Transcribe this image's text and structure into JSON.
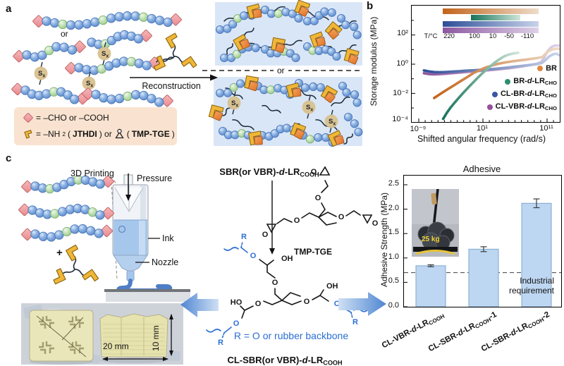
{
  "panel_labels": {
    "a": "a",
    "b": "b",
    "c": "c"
  },
  "panel_a": {
    "or_top": "or",
    "or_mid": "or",
    "reconstruction": "Reconstruction",
    "sx": {
      "s": "S",
      "x": "x"
    },
    "legend": {
      "row1": "= –CHO or –COOH",
      "nh": "= –NH",
      "nh_sub": "2",
      "o1": "(",
      "jthdi": "JTHDI",
      "o2": ") or",
      "o3": "(",
      "tmp": "TMP-TGE",
      "o4": ")"
    }
  },
  "panel_b": {
    "ylabel": "Storage modulus (MPa)",
    "xlabel": "Shifted angular frequency (rad/s)",
    "temp_label": "T/°C",
    "temp_ticks": [
      "220",
      "100",
      "10",
      "-50",
      "-110"
    ],
    "yticks": [
      "10²",
      "10⁰",
      "10⁻²",
      "10⁻⁴"
    ],
    "xticks": [
      "10⁻⁹",
      "10¹",
      "10¹¹"
    ],
    "legend": [
      {
        "pre": "BR",
        "d": "",
        "mid": "",
        "sub": "",
        "dot_color": "#e0873f"
      },
      {
        "pre": "BR-",
        "d": "d",
        "mid": "-LR",
        "sub": "CHO",
        "dot_color": "#2e8f6d"
      },
      {
        "pre": "CL-BR-",
        "d": "d",
        "mid": "-LR",
        "sub": "CHO",
        "dot_color": "#3a57a5"
      },
      {
        "pre": "CL-VBR-",
        "d": "d",
        "mid": "-LR",
        "sub": "CHO",
        "dot_color": "#94519c"
      }
    ]
  },
  "panel_c": {
    "printing_label": "3D Printing",
    "pressure": "Pressure",
    "ink": "Ink",
    "nozzle": "Nozzle",
    "plus": "+",
    "dim_w": "20 mm",
    "dim_h": "10 mm",
    "chem": {
      "sbr": {
        "pre": "SBR(or VBR)-",
        "d": "d",
        "mid": "-LR",
        "sub": "COOH"
      },
      "tmp_tge": "TMP-TGE",
      "r_note": "R = O or rubber backbone",
      "clsbr": {
        "pre": "CL-SBR(or VBR)-",
        "d": "d",
        "mid": "-LR",
        "sub": "COOH"
      },
      "oh": "OH",
      "ho": "HO",
      "o": "O",
      "r": "R"
    },
    "adhesive": {
      "title": "Adhesive",
      "ylabel": "Adhesive Strength (MPa)",
      "yticks": [
        "0.0",
        "0.5",
        "1.0",
        "1.5",
        "2.0",
        "2.5"
      ],
      "bars": [
        {
          "pre": "CL-VBR-",
          "d": "d",
          "mid": "-LR",
          "sub": "COOH",
          "suf": ""
        },
        {
          "pre": "CL-SBR-",
          "d": "d",
          "mid": "-LR",
          "sub": "COOH",
          "suf": "-1"
        },
        {
          "pre": "CL-SBR-",
          "d": "d",
          "mid": "-LR",
          "sub": "COOH",
          "suf": "-2"
        }
      ],
      "industrial_1": "Industrial",
      "industrial_2": "requirement",
      "weight_label": "25 kg"
    }
  },
  "chart_data": [
    {
      "type": "line",
      "title": "",
      "xlabel": "Shifted angular frequency (rad/s)",
      "ylabel": "Storage modulus (MPa)",
      "xscale": "log",
      "yscale": "log",
      "xlim_log10": [
        -9.8,
        13.2
      ],
      "ylim_log10": [
        -4.3,
        3.0
      ],
      "xticks_log10": [
        -9,
        1,
        11
      ],
      "yticks_log10": [
        -4,
        -2,
        0,
        2
      ],
      "temperature_scale": {
        "label": "T/°C",
        "ticks": [
          220,
          100,
          10,
          -50,
          -110
        ]
      },
      "legend_position": "lower right",
      "series": [
        {
          "name": "BR",
          "color_dark": "#c2641c",
          "color_light": "#eedcc9",
          "temp_range": [
            220,
            -110
          ],
          "points_log10": [
            [
              -6.6,
              -2.32
            ],
            [
              -5.5,
              -2.0
            ],
            [
              -4.5,
              -1.72
            ],
            [
              -3.5,
              -1.45
            ],
            [
              -2.5,
              -1.17
            ],
            [
              -1.5,
              -0.9
            ],
            [
              -0.5,
              -0.62
            ],
            [
              0.5,
              -0.4
            ],
            [
              1.5,
              -0.22
            ],
            [
              2.5,
              -0.08
            ],
            [
              3.5,
              0.04
            ],
            [
              4.5,
              0.12
            ],
            [
              5.5,
              0.19
            ],
            [
              6.5,
              0.25
            ],
            [
              7.5,
              0.3
            ],
            [
              8.5,
              0.36
            ],
            [
              9.5,
              0.42
            ],
            [
              10.3,
              0.5
            ],
            [
              11,
              0.82
            ],
            [
              11.7,
              1.0
            ],
            [
              12.4,
              1.06
            ],
            [
              12.8,
              1.05
            ]
          ]
        },
        {
          "name": "BR-d-LRCHO",
          "color_dark": "#17745a",
          "color_light": "#cfe6d9",
          "temp_range": [
            100,
            -50
          ],
          "points_log10": [
            [
              -5.2,
              -3.75
            ],
            [
              -4.6,
              -3.32
            ],
            [
              -4,
              -2.95
            ],
            [
              -3.4,
              -2.63
            ],
            [
              -2.8,
              -2.33
            ],
            [
              -2.2,
              -2.03
            ],
            [
              -1.6,
              -1.75
            ],
            [
              -1,
              -1.47
            ],
            [
              -0.4,
              -1.2
            ],
            [
              0.2,
              -0.93
            ],
            [
              0.8,
              -0.67
            ],
            [
              1.4,
              -0.43
            ],
            [
              2,
              -0.2
            ],
            [
              2.6,
              0.02
            ],
            [
              3.2,
              0.22
            ],
            [
              3.8,
              0.4
            ],
            [
              4.4,
              0.55
            ],
            [
              5,
              0.65
            ],
            [
              5.7,
              0.73
            ],
            [
              6.5,
              0.78
            ]
          ]
        },
        {
          "name": "CL-BR-d-LRCHO",
          "color_dark": "#2c4e97",
          "color_light": "#c9d3ea",
          "temp_range": [
            220,
            -110
          ],
          "points_log10": [
            [
              -8.2,
              -0.43
            ],
            [
              -7.4,
              -0.5
            ],
            [
              -6.6,
              -0.54
            ],
            [
              -5.8,
              -0.55
            ],
            [
              -5,
              -0.54
            ],
            [
              -4.2,
              -0.52
            ],
            [
              -3.4,
              -0.5
            ],
            [
              -2.6,
              -0.48
            ],
            [
              -1.8,
              -0.45
            ],
            [
              -1,
              -0.43
            ],
            [
              -0.2,
              -0.41
            ],
            [
              0.6,
              -0.39
            ],
            [
              1.4,
              -0.37
            ],
            [
              2.2,
              -0.35
            ],
            [
              3,
              -0.32
            ],
            [
              3.8,
              -0.28
            ],
            [
              4.6,
              -0.24
            ],
            [
              5.4,
              -0.2
            ],
            [
              6.2,
              -0.16
            ],
            [
              7,
              -0.12
            ],
            [
              7.8,
              -0.08
            ],
            [
              8.6,
              -0.04
            ],
            [
              9.4,
              0.0
            ],
            [
              10.2,
              0.08
            ],
            [
              10.8,
              0.3
            ],
            [
              11.4,
              0.55
            ],
            [
              12,
              0.68
            ],
            [
              12.5,
              0.72
            ],
            [
              12.8,
              0.62
            ]
          ]
        },
        {
          "name": "CL-VBR-d-LRCHO",
          "color_dark": "#8c56a0",
          "color_light": "#ded2e8",
          "temp_range": [
            220,
            -110
          ],
          "points_log10": [
            [
              -8.2,
              -0.62
            ],
            [
              -7.4,
              -0.68
            ],
            [
              -6.6,
              -0.7
            ],
            [
              -5.8,
              -0.68
            ],
            [
              -5,
              -0.66
            ],
            [
              -4.2,
              -0.63
            ],
            [
              -3.4,
              -0.6
            ],
            [
              -2.6,
              -0.57
            ],
            [
              -1.8,
              -0.54
            ],
            [
              -1,
              -0.51
            ],
            [
              -0.2,
              -0.48
            ],
            [
              0.6,
              -0.46
            ],
            [
              1.4,
              -0.43
            ],
            [
              2.2,
              -0.4
            ],
            [
              3,
              -0.37
            ],
            [
              3.8,
              -0.34
            ],
            [
              4.6,
              -0.3
            ],
            [
              5.4,
              -0.26
            ],
            [
              6.2,
              -0.21
            ],
            [
              7,
              -0.16
            ],
            [
              7.8,
              -0.1
            ],
            [
              8.6,
              -0.04
            ],
            [
              9.4,
              0.03
            ],
            [
              10.1,
              0.15
            ],
            [
              10.6,
              0.5
            ],
            [
              11.1,
              0.9
            ],
            [
              11.6,
              1.15
            ],
            [
              12.2,
              1.28
            ],
            [
              12.8,
              1.27
            ]
          ]
        }
      ]
    },
    {
      "type": "bar",
      "title": "Adhesive",
      "ylabel": "Adhesive Strength (MPa)",
      "categories": [
        "CL-VBR-d-LR_COOH",
        "CL-SBR-d-LR_COOH-1",
        "CL-SBR-d-LR_COOH-2"
      ],
      "values": [
        0.84,
        1.18,
        2.12
      ],
      "errors": [
        0.02,
        0.05,
        0.09
      ],
      "ylim": [
        0,
        2.5
      ],
      "yticks": [
        0,
        0.5,
        1,
        1.5,
        2,
        2.5
      ],
      "reference_line": {
        "value": 0.7,
        "label": "Industrial requirement",
        "style": "dashed"
      },
      "bar_color": "#bdd7f2",
      "inset_label": "25 kg"
    }
  ]
}
